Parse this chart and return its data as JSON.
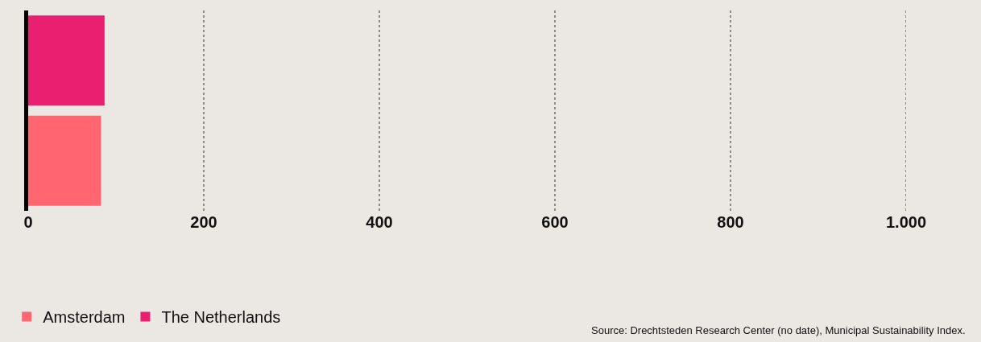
{
  "chart_data": {
    "type": "bar",
    "orientation": "horizontal",
    "categories": [
      null
    ],
    "series": [
      {
        "name": "Amsterdam",
        "color": "#ff6670",
        "values": [
          83
        ]
      },
      {
        "name": "The Netherlands",
        "color": "#e8206f",
        "values": [
          87
        ]
      }
    ],
    "xlim": [
      0,
      1000
    ],
    "xticks": [
      0,
      200,
      400,
      600,
      800,
      {
        "value": 1000,
        "label": "1.000"
      }
    ],
    "grid": "x",
    "legend": "bottom left",
    "tick_labels": "x",
    "annotations": [
      "Source: Drechtsteden Research Center (no date), Municipal Sustainability Index."
    ]
  }
}
